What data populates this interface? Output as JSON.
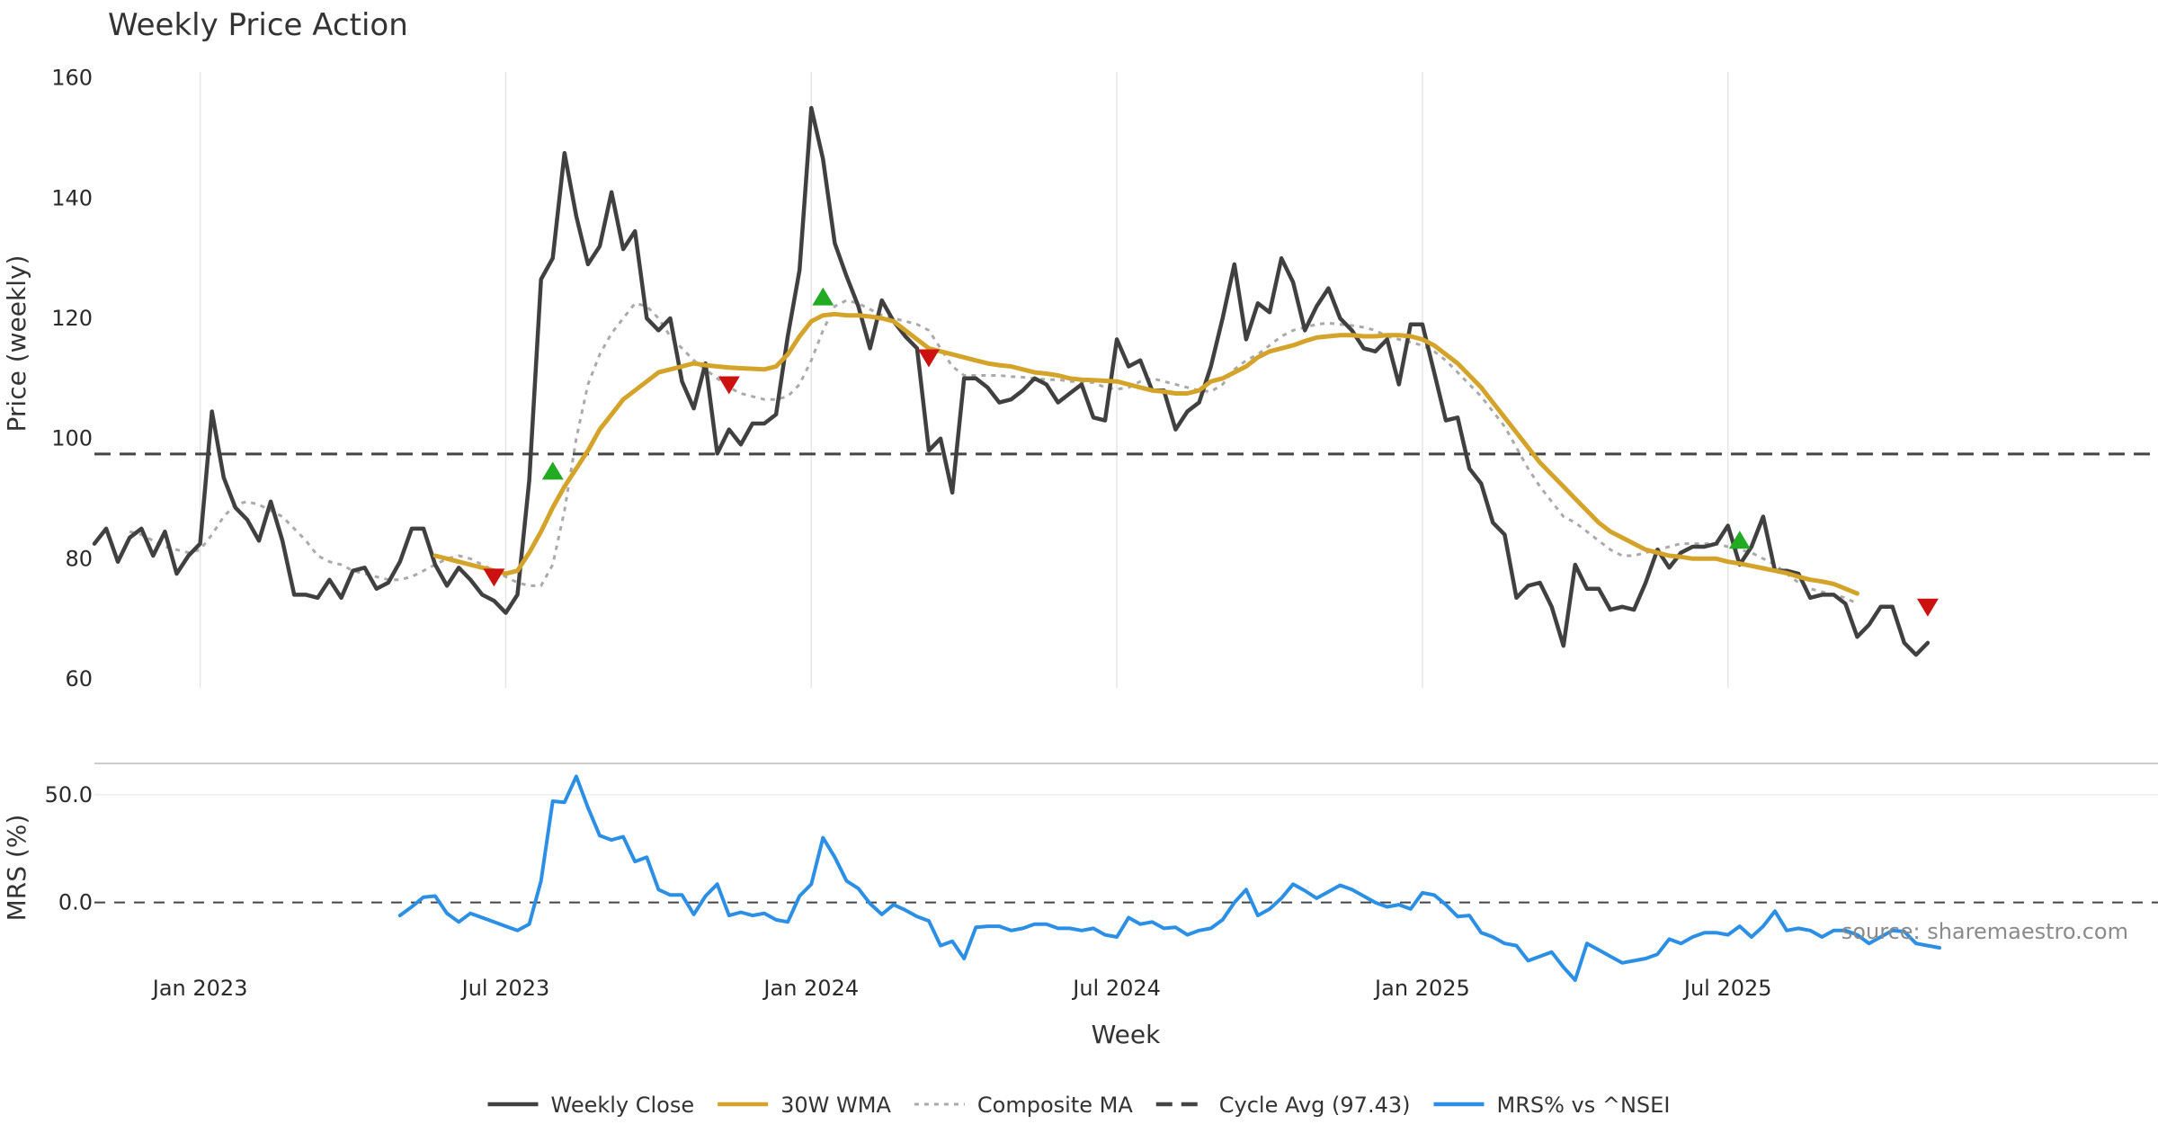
{
  "chart_data": {
    "type": "line",
    "title": "Weekly Price Action",
    "xlabel": "Week",
    "x_ticks": [
      {
        "label": "Jan 2023",
        "week": 10
      },
      {
        "label": "Jul 2023",
        "week": 36
      },
      {
        "label": "Jan 2024",
        "week": 62
      },
      {
        "label": "Jul 2024",
        "week": 88
      },
      {
        "label": "Jan 2025",
        "week": 114
      },
      {
        "label": "Jul 2025",
        "week": 140
      }
    ],
    "x_range": [
      1,
      158
    ],
    "price_panel": {
      "ylabel": "Price (weekly)",
      "ylim": [
        58.5,
        161
      ],
      "yticks": [
        60,
        80,
        100,
        120,
        140,
        160
      ],
      "grid": "vertical",
      "cycle_avg": 97.43,
      "series": [
        {
          "name": "Weekly Close",
          "color": "#404040",
          "style": "solid",
          "start_week": 1,
          "values": [
            82.5,
            85,
            79.5,
            83.5,
            85,
            80.5,
            84.5,
            77.5,
            80.5,
            82.5,
            104.5,
            93.5,
            88.5,
            86.5,
            83,
            89.5,
            83,
            74,
            74,
            73.5,
            76.5,
            73.5,
            78,
            78.5,
            75,
            76,
            79.5,
            85,
            85,
            79,
            75.5,
            78.5,
            76.5,
            74,
            73,
            71,
            74,
            93,
            126.5,
            130,
            147.5,
            137,
            129,
            132,
            141,
            131.5,
            134.5,
            120,
            118,
            120,
            109.5,
            105,
            112.5,
            97.5,
            101.5,
            99,
            102.5,
            102.5,
            104,
            117,
            128,
            155,
            146.5,
            132.5,
            127,
            122,
            115,
            123,
            119.5,
            117,
            115,
            98,
            100,
            91,
            110,
            110,
            108.5,
            106,
            106.5,
            108,
            110,
            109,
            106,
            107.5,
            109,
            103.5,
            103,
            116.5,
            112,
            113,
            108,
            108,
            101.5,
            104.5,
            106,
            112,
            120,
            129,
            116.5,
            122.5,
            121,
            130,
            126,
            118,
            122,
            125,
            120,
            118,
            115,
            114.5,
            116.5,
            109,
            119,
            119,
            111,
            103,
            103.5,
            95,
            92.5,
            86,
            84,
            73.5,
            75.5,
            76,
            72,
            65.5,
            79,
            75,
            75,
            71.5,
            72,
            71.5,
            76,
            81.5,
            78.5,
            81,
            82,
            82,
            82.5,
            85.5,
            79,
            82,
            87,
            78,
            78,
            77.5,
            73.5,
            74,
            74,
            72.5,
            67,
            69,
            72,
            72,
            66,
            64,
            66
          ]
        },
        {
          "name": "30W WMA",
          "color": "#d4a32a",
          "style": "solid",
          "start_week": 30,
          "values": [
            80.5,
            80,
            79.5,
            79,
            78.5,
            78,
            77.5,
            78,
            81,
            84.5,
            88.5,
            92,
            95,
            98,
            101.5,
            104,
            106.5,
            108,
            109.5,
            111,
            111.5,
            112,
            112.5,
            112.2,
            112,
            111.8,
            111.7,
            111.6,
            111.5,
            112,
            114,
            117,
            119.5,
            120.5,
            120.7,
            120.5,
            120.5,
            120.3,
            120,
            119.5,
            118,
            116.5,
            115,
            114.5,
            114,
            113.5,
            113,
            112.5,
            112.2,
            112,
            111.5,
            111,
            110.8,
            110.5,
            110,
            109.8,
            109.7,
            109.6,
            109.5,
            109,
            108.5,
            108,
            107.8,
            107.5,
            107.5,
            108,
            109.5,
            110,
            111,
            112,
            113.5,
            114.5,
            115,
            115.5,
            116.2,
            116.8,
            117,
            117.2,
            117.2,
            117,
            117,
            117.2,
            117.2,
            117,
            116.5,
            115.5,
            114,
            112.5,
            110.5,
            108.5,
            106,
            103.5,
            101,
            98.5,
            96,
            94,
            92,
            90,
            88,
            86,
            84.5,
            83.5,
            82.5,
            81.5,
            81,
            80.5,
            80.3,
            80,
            80,
            80,
            79.5,
            79.2,
            78.8,
            78.4,
            78,
            77.6,
            77,
            76.5,
            76.2,
            75.8,
            75,
            74.2
          ]
        },
        {
          "name": "Composite MA",
          "color": "#aaaaaa",
          "style": "dotted",
          "start_week": 4,
          "values": [
            84.5,
            84,
            83,
            82,
            81.5,
            81,
            81.5,
            84,
            87,
            89,
            89.5,
            89,
            88,
            87,
            85,
            83,
            80.5,
            79.5,
            79,
            78,
            77.5,
            77,
            76.5,
            76.5,
            77,
            78,
            79,
            80,
            80.5,
            80,
            79,
            78,
            77,
            76,
            75.5,
            75.5,
            79,
            88,
            100,
            109,
            114,
            117.5,
            120,
            122.5,
            122,
            120,
            117,
            115,
            113,
            111.5,
            110,
            108.5,
            107.5,
            107,
            106.5,
            106.5,
            107,
            109,
            113,
            118,
            122,
            123,
            122.5,
            121.5,
            120.5,
            120,
            119.5,
            119,
            118,
            115,
            112,
            110.5,
            110.5,
            110.5,
            110.5,
            110.3,
            110.2,
            110,
            109.8,
            109.8,
            109.5,
            109.5,
            109.3,
            108.5,
            108.2,
            108.5,
            109.5,
            110,
            109.5,
            109,
            108.5,
            108,
            107.8,
            109,
            111.5,
            113,
            114,
            115.5,
            117,
            118,
            118.5,
            119,
            119.2,
            119,
            118.8,
            118.5,
            118,
            117,
            116.5,
            116,
            115.5,
            114.5,
            113,
            111,
            109,
            107,
            104.5,
            102,
            98.5,
            95,
            92,
            89.5,
            87,
            86,
            84.5,
            83,
            81.5,
            80.5,
            80.5,
            81,
            81.5,
            82,
            82.5,
            82.5,
            82.5,
            82.5,
            82,
            81.5,
            81,
            80,
            79,
            77.5,
            76,
            75,
            74.5,
            74,
            73.5,
            72.5
          ]
        }
      ],
      "markers": [
        {
          "type": "sell",
          "week": 35,
          "value": 77,
          "color": "#cc1111"
        },
        {
          "type": "buy",
          "week": 40,
          "value": 94.5,
          "color": "#22aa22"
        },
        {
          "type": "sell",
          "week": 55,
          "value": 109,
          "color": "#cc1111"
        },
        {
          "type": "buy",
          "week": 63,
          "value": 123.5,
          "color": "#22aa22"
        },
        {
          "type": "sell",
          "week": 72,
          "value": 113.5,
          "color": "#cc1111"
        },
        {
          "type": "buy",
          "week": 141,
          "value": 83,
          "color": "#22aa22"
        },
        {
          "type": "sell",
          "week": 157,
          "value": 72,
          "color": "#cc1111"
        }
      ]
    },
    "mrs_panel": {
      "ylabel": "MRS (%)",
      "ylim": [
        -36,
        62
      ],
      "yticks": [
        50.0,
        0.0
      ],
      "ytick_labels": [
        "50.0",
        "0.0"
      ],
      "baseline": 0,
      "series": [
        {
          "name": "MRS% vs ^NSEI",
          "color": "#2b8fe6",
          "style": "solid",
          "start_week": 27,
          "values": [
            -6,
            -2,
            2.5,
            3,
            -5,
            -9,
            -5,
            -7,
            -9,
            -11,
            -13,
            -10,
            10,
            47,
            46.5,
            58.5,
            44,
            31,
            29,
            30.5,
            19,
            21,
            6,
            3.5,
            3.5,
            -5.5,
            3,
            8.5,
            -6,
            -4.5,
            -6,
            -5,
            -8,
            -9,
            3,
            8.5,
            30,
            21,
            10,
            6.5,
            -0.5,
            -5.5,
            -1,
            -3.5,
            -6.5,
            -8.5,
            -20,
            -18,
            -26,
            -11.5,
            -11,
            -11,
            -13,
            -12,
            -10,
            -10,
            -12,
            -12,
            -13,
            -12,
            -15,
            -16,
            -7,
            -10,
            -9,
            -12,
            -11.5,
            -15,
            -13,
            -12,
            -8,
            0,
            6,
            -6,
            -3,
            2,
            8.5,
            5.5,
            2,
            5,
            8,
            6,
            3,
            0,
            -2,
            -1,
            -3,
            4.5,
            3.5,
            -1,
            -6.5,
            -6,
            -14,
            -16,
            -19,
            -20,
            -27,
            -25,
            -23,
            -30,
            -36,
            -19,
            -22,
            -25,
            -28,
            -27,
            -26,
            -24,
            -17,
            -19,
            -16,
            -14,
            -14,
            -15,
            -11,
            -16,
            -11,
            -4,
            -13,
            -12,
            -13,
            -16,
            -13,
            -13,
            -15,
            -19,
            -16,
            -13,
            -13.5,
            -19,
            -20,
            -21
          ]
        }
      ]
    },
    "legend": [
      {
        "label": "Weekly Close",
        "color": "#404040",
        "style": "solid"
      },
      {
        "label": "30W WMA",
        "color": "#d4a32a",
        "style": "solid"
      },
      {
        "label": "Composite MA",
        "color": "#aaaaaa",
        "style": "dotted"
      },
      {
        "label": "Cycle Avg (97.43)",
        "color": "#444444",
        "style": "dashed"
      },
      {
        "label": "MRS% vs ^NSEI",
        "color": "#2b8fe6",
        "style": "solid"
      }
    ],
    "legend_position": "bottom-center",
    "watermark": "source: sharemaestro.com"
  }
}
